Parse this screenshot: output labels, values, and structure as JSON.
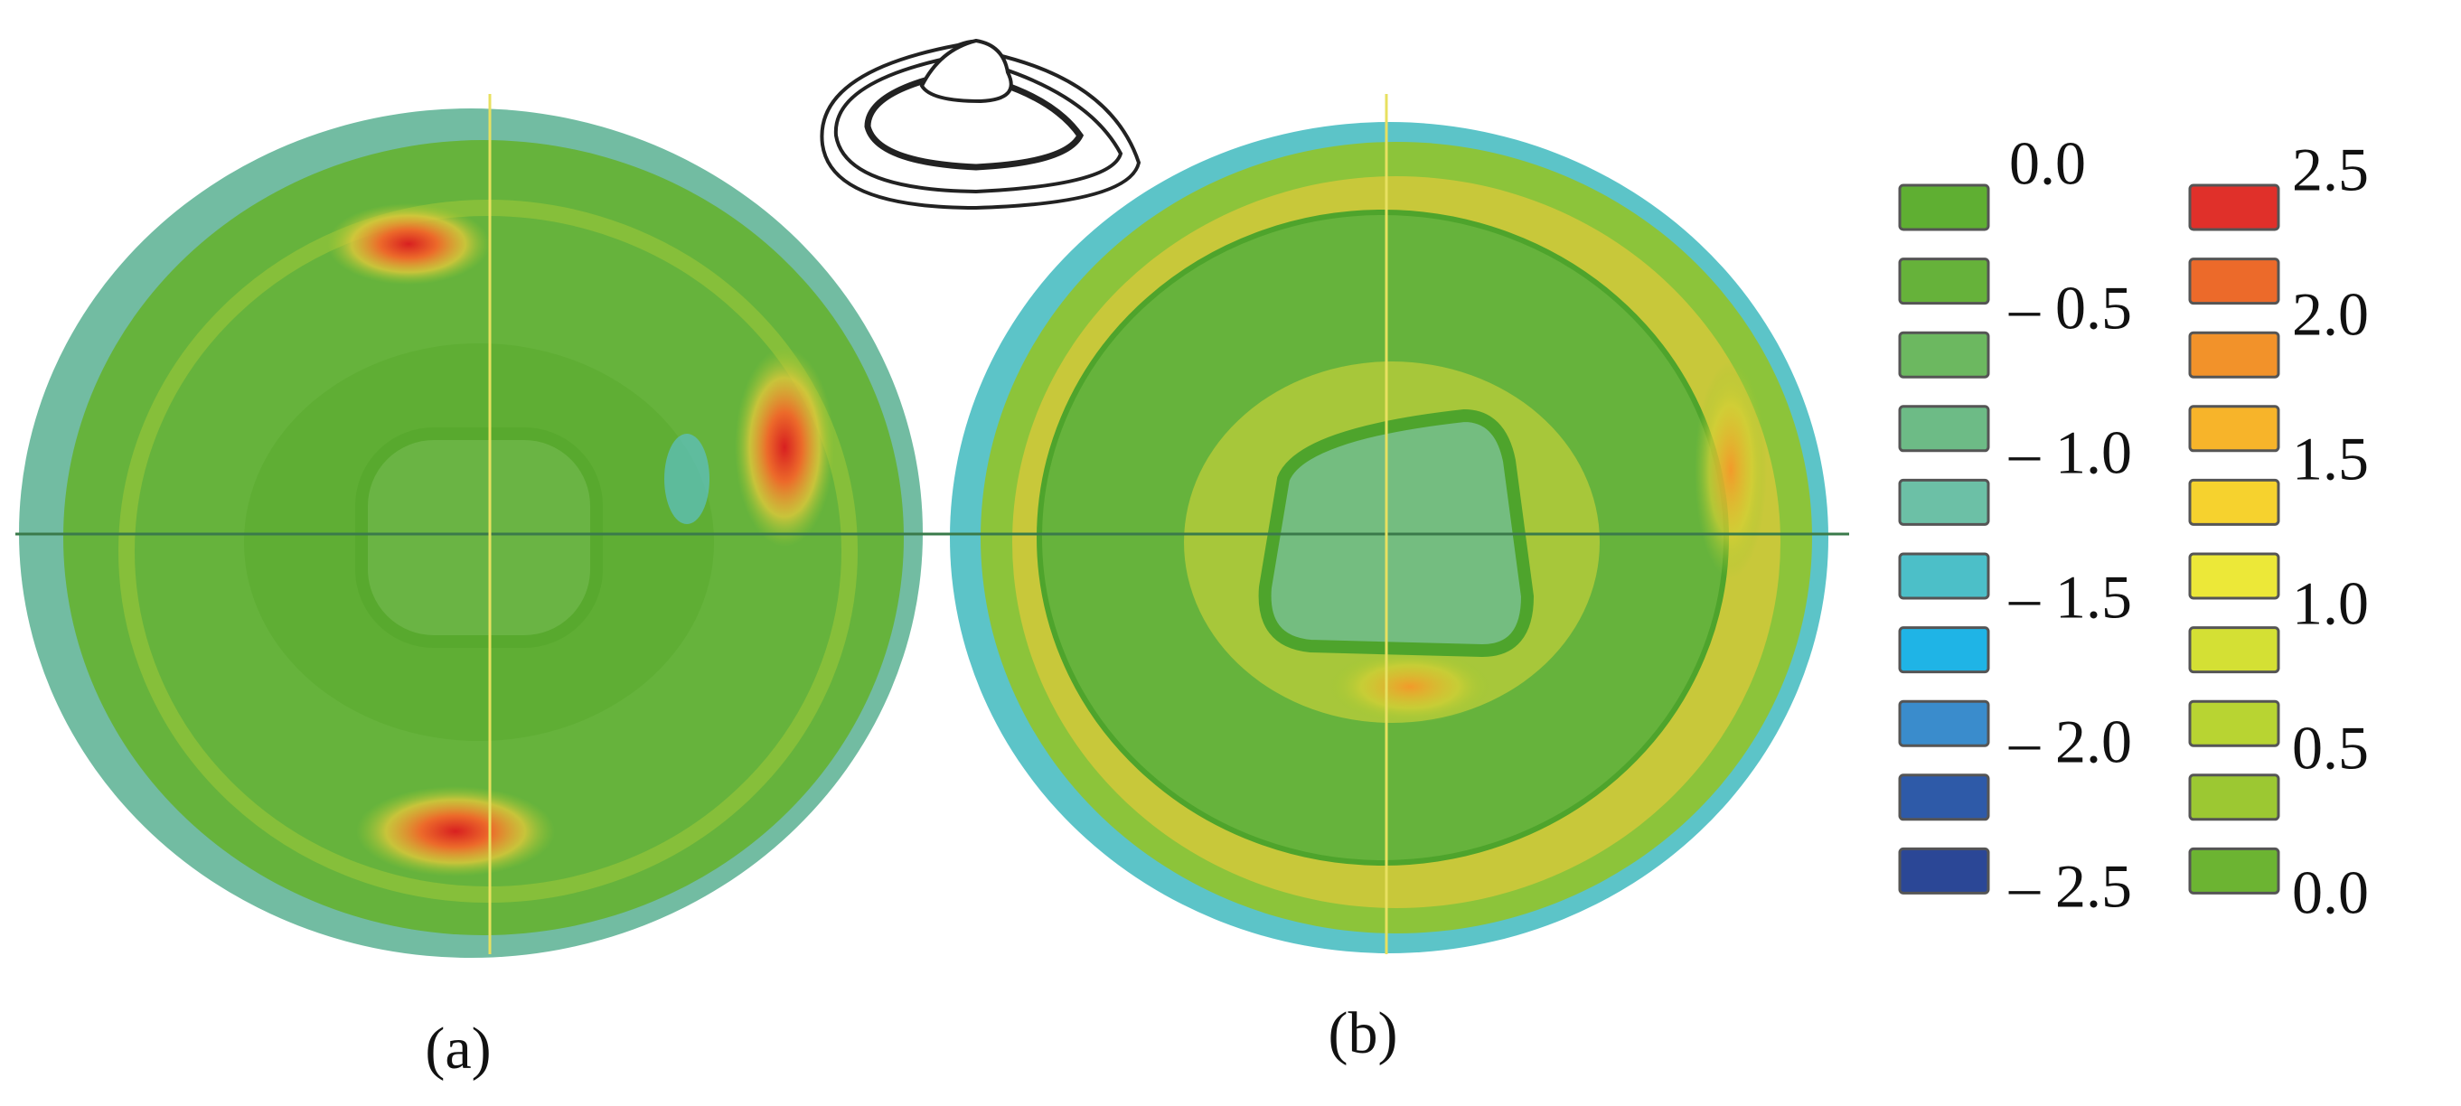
{
  "panels": [
    {
      "label": "(a)"
    },
    {
      "label": "(b)"
    }
  ],
  "legend": {
    "negative": {
      "labels": [
        "0.0",
        "– 0.5",
        "– 1.0",
        "– 1.5",
        "– 2.0",
        "– 2.5"
      ],
      "colors": [
        "#5faf32",
        "#66b23a",
        "#6cb860",
        "#6dbb86",
        "#6cc0a6",
        "#4cbfc8",
        "#1fb4e6",
        "#3a8ccc",
        "#2e5aa8",
        "#2b4796"
      ]
    },
    "positive": {
      "labels": [
        "2.5",
        "2.0",
        "1.5",
        "1.0",
        "0.5",
        "0.0"
      ],
      "colors": [
        "#e0302a",
        "#ec6a2a",
        "#f2922a",
        "#f7b42a",
        "#f6d22e",
        "#ece838",
        "#d4e034",
        "#b8d432",
        "#9cc832",
        "#6cb432"
      ]
    }
  }
}
